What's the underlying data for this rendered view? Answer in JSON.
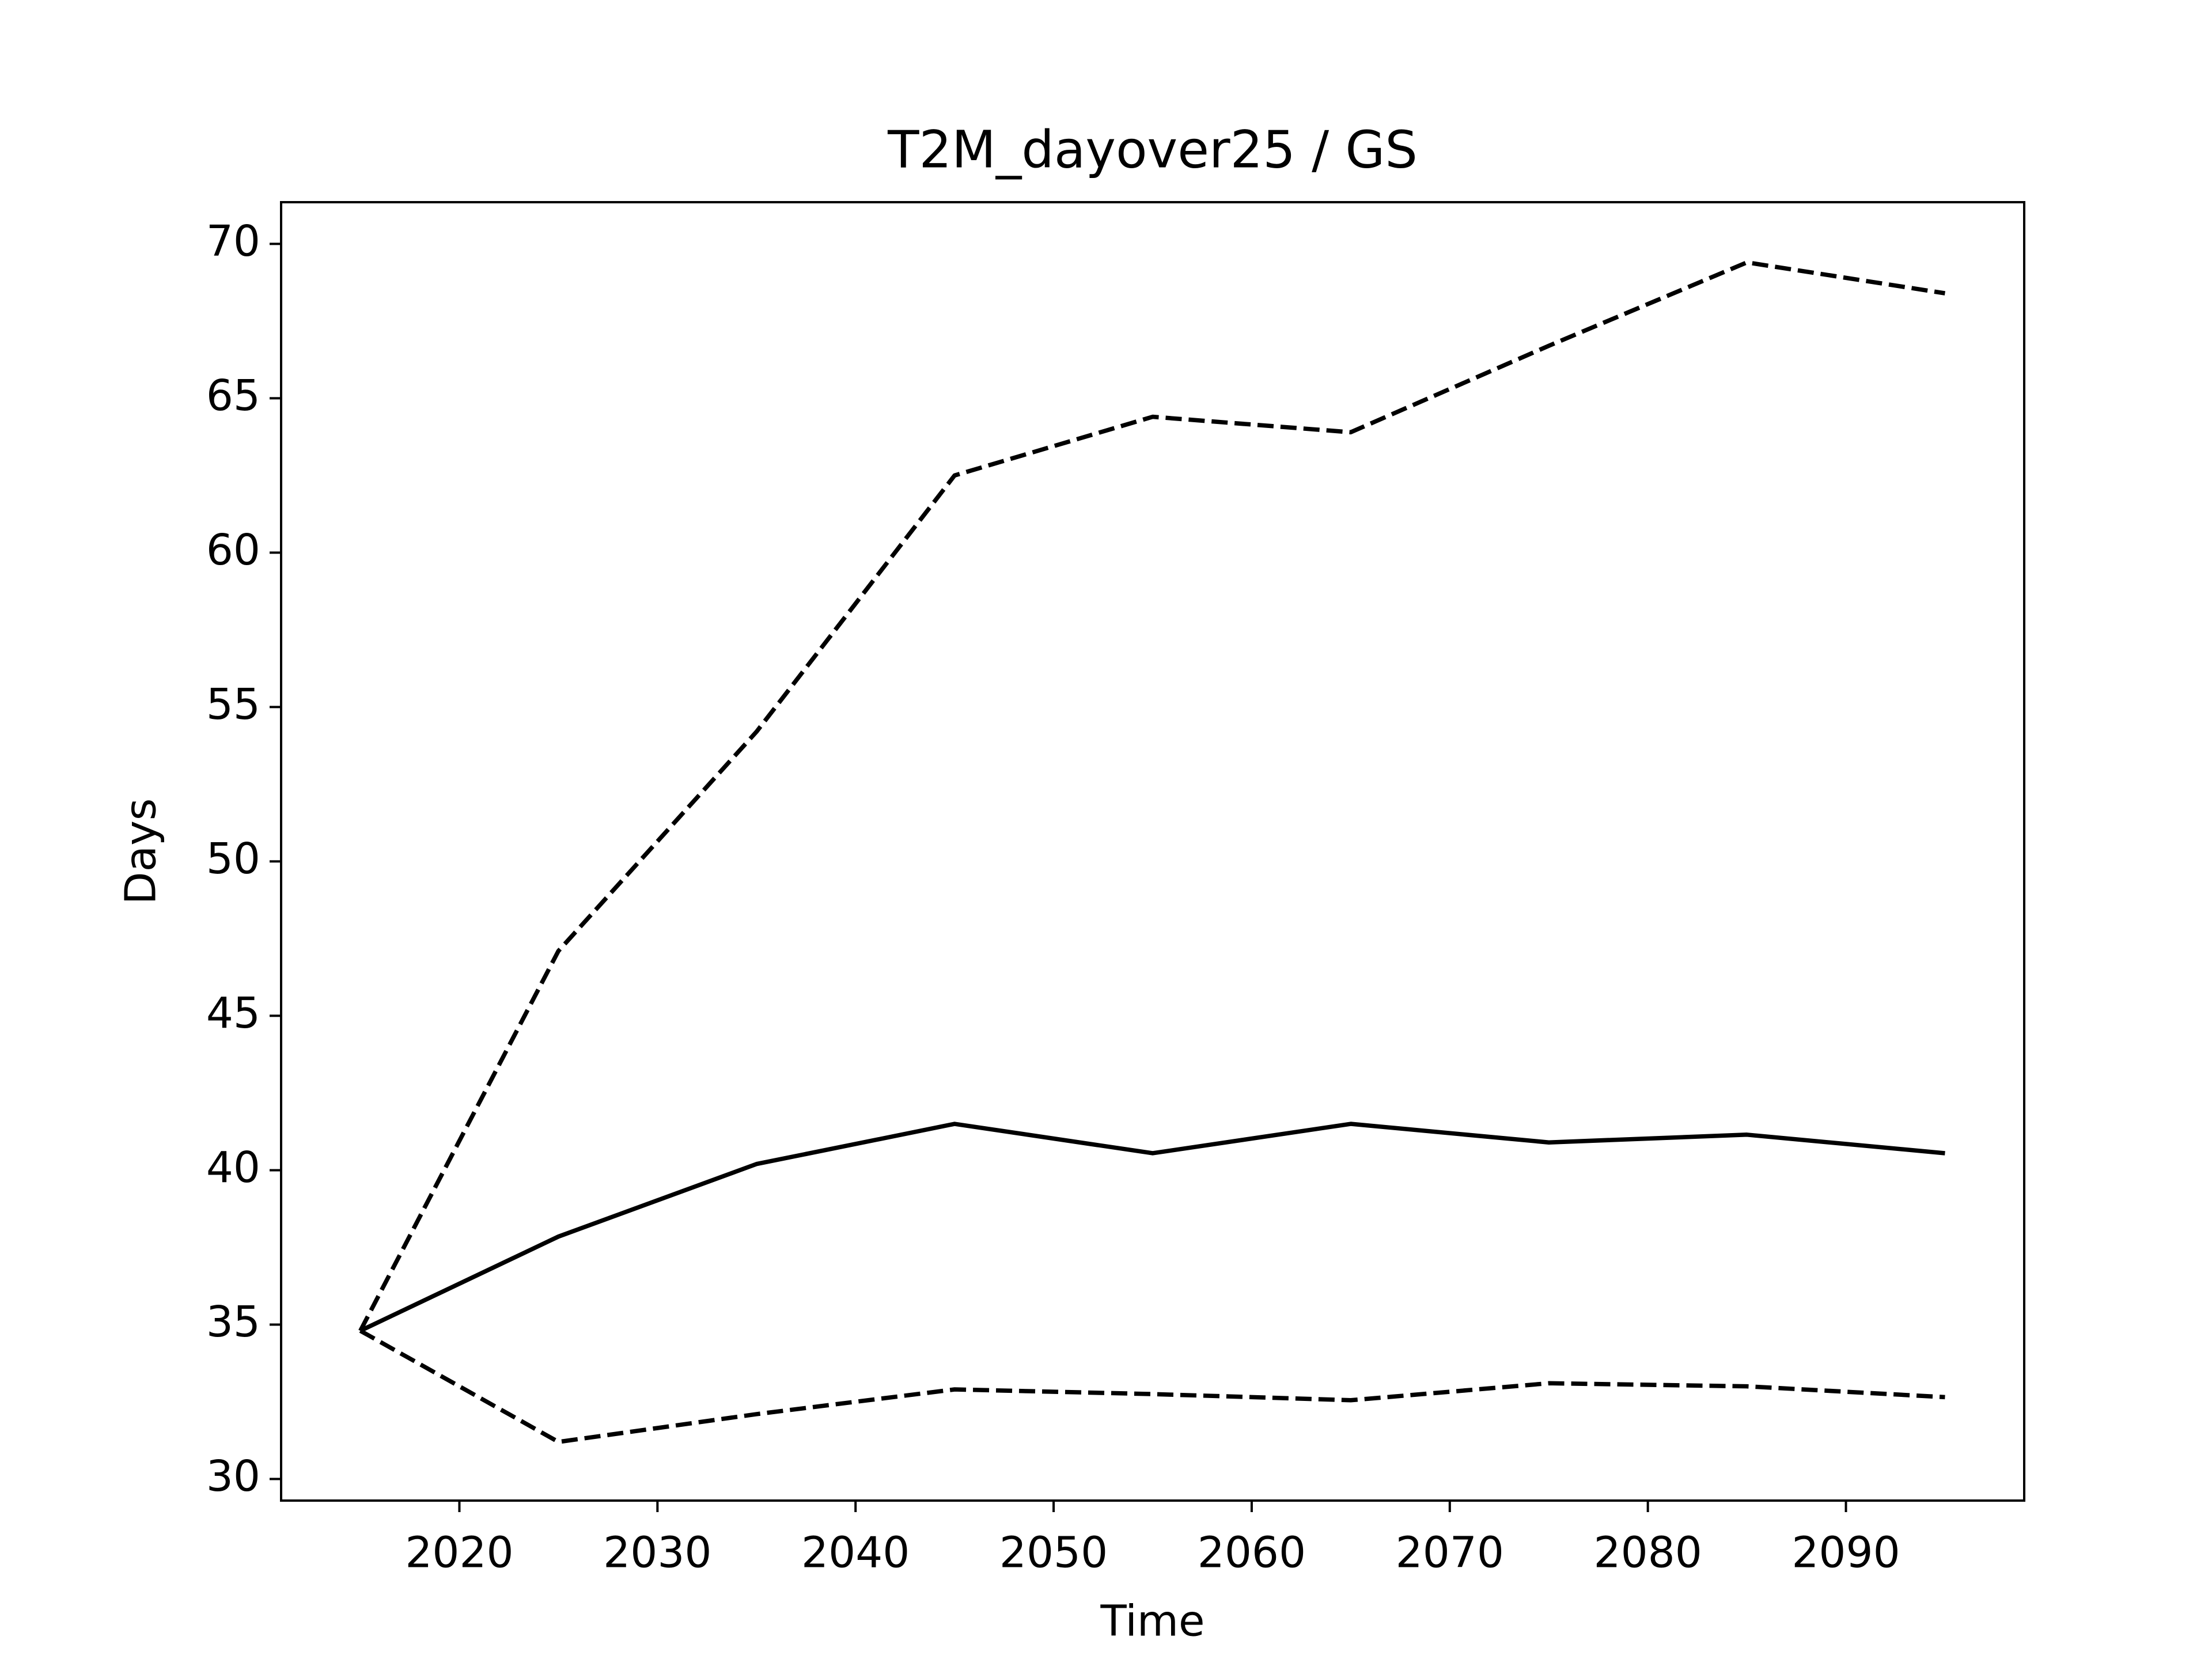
{
  "chart_data": {
    "type": "line",
    "title": "T2M_dayover25 / GS",
    "xlabel": "Time",
    "ylabel": "Days",
    "x": [
      2015,
      2025,
      2035,
      2045,
      2055,
      2065,
      2075,
      2085,
      2095
    ],
    "series": [
      {
        "color": "#000000",
        "linestyle": "solid",
        "values": [
          34.8,
          37.85,
          40.2,
          41.5,
          40.55,
          41.5,
          40.9,
          41.15,
          40.55
        ]
      },
      {
        "color": "#000000",
        "linestyle": "dashed",
        "values": [
          34.8,
          47.1,
          54.2,
          62.5,
          64.4,
          63.9,
          66.7,
          69.4,
          68.4
        ]
      },
      {
        "color": "#000000",
        "linestyle": "dashed",
        "values": [
          34.8,
          31.2,
          32.1,
          32.9,
          32.75,
          32.55,
          33.1,
          33.0,
          32.65
        ]
      }
    ],
    "xlim": [
      2011,
      2099
    ],
    "ylim": [
      29.3,
      71.35
    ],
    "xticks": [
      2020,
      2030,
      2040,
      2050,
      2060,
      2070,
      2080,
      2090
    ],
    "yticks": [
      30,
      35,
      40,
      45,
      50,
      55,
      60,
      65,
      70
    ],
    "grid": false
  }
}
